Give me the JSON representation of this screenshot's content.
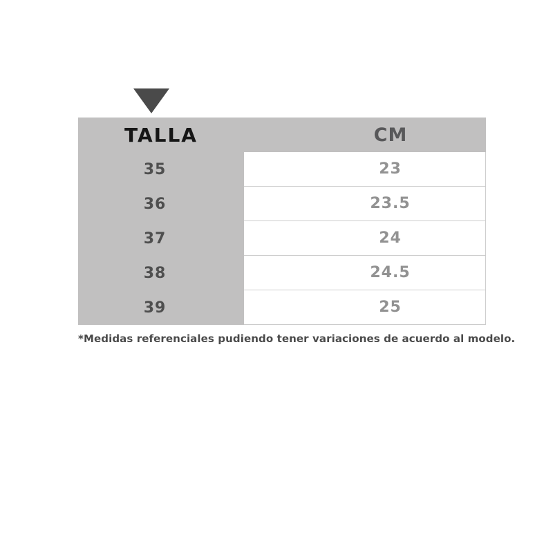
{
  "page": {
    "background": "#ffffff"
  },
  "icons": {
    "triangle_down": {
      "name": "triangle-down-icon",
      "color": "#4a4a4a"
    }
  },
  "colors": {
    "table_gray": "#c1c0c0",
    "border": "#cccccc",
    "header_talla_text": "#161616",
    "header_cm_text": "#58585a",
    "size_text": "#4f4f4f",
    "cm_text": "#929292",
    "footnote_text": "#4a4a4a",
    "triangle": "#4a4a4a"
  },
  "table": {
    "headers": {
      "talla": "TALLA",
      "cm": "CM"
    },
    "rows": [
      {
        "talla": "35",
        "cm": "23"
      },
      {
        "talla": "36",
        "cm": "23.5"
      },
      {
        "talla": "37",
        "cm": "24"
      },
      {
        "talla": "38",
        "cm": "24.5"
      },
      {
        "talla": "39",
        "cm": "25"
      }
    ]
  },
  "footnote": "*Medidas referenciales pudiendo tener variaciones de acuerdo al modelo.",
  "chart_data": {
    "type": "table",
    "columns": [
      "TALLA",
      "CM"
    ],
    "rows": [
      [
        "35",
        "23"
      ],
      [
        "36",
        "23.5"
      ],
      [
        "37",
        "24"
      ],
      [
        "38",
        "24.5"
      ],
      [
        "39",
        "25"
      ]
    ],
    "title": "",
    "footnote": "*Medidas referenciales pudiendo tener variaciones de acuerdo al modelo.",
    "layout": {
      "header_background": "#c1c0c0",
      "talla_column_background": "#c1c0c0",
      "cm_column_background": "#ffffff",
      "grid": "horizontal-light"
    }
  }
}
